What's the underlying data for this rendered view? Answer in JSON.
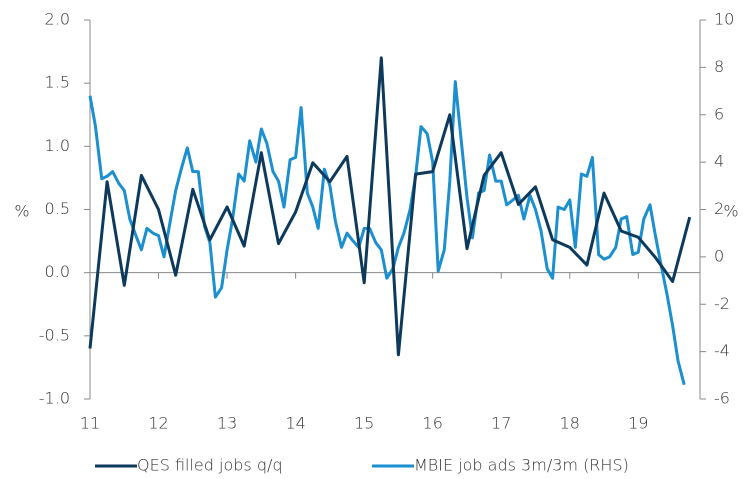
{
  "chart_data": {
    "type": "line",
    "y_label": "%",
    "y2_label": "%",
    "xlim": [
      11,
      19.9
    ],
    "xticks": [
      11,
      12,
      13,
      14,
      15,
      16,
      17,
      18,
      19
    ],
    "ylim": [
      -1,
      2
    ],
    "yticks": [
      {
        "value": 2,
        "label": "2.0"
      },
      {
        "value": 1.5,
        "label": "1.5"
      },
      {
        "value": 1,
        "label": "1.0"
      },
      {
        "value": 0.5,
        "label": "0.5"
      },
      {
        "value": 0,
        "label": "0.0"
      },
      {
        "value": -0.5,
        "label": "-0.5"
      },
      {
        "value": -1,
        "label": "-1.0"
      }
    ],
    "y2lim": [
      -6,
      10
    ],
    "y2ticks": [
      10,
      8,
      6,
      4,
      2,
      0,
      -2,
      -4,
      -6
    ],
    "legend": "bottom",
    "series": [
      {
        "name": "QES filled jobs q/q",
        "color": "#0d3a5c",
        "x": [
          11,
          11.25,
          11.5,
          11.75,
          12,
          12.25,
          12.5,
          12.75,
          13,
          13.25,
          13.5,
          13.75,
          14,
          14.25,
          14.5,
          14.75,
          15,
          15.25,
          15.5,
          15.75,
          16,
          16.25,
          16.5,
          16.75,
          17,
          17.25,
          17.5,
          17.75,
          18,
          18.25,
          18.5,
          18.75,
          19,
          19.25,
          19.5,
          19.75
        ],
        "values": [
          -0.6,
          0.72,
          -0.1,
          0.77,
          0.5,
          -0.02,
          0.66,
          0.26,
          0.52,
          0.21,
          0.95,
          0.23,
          0.48,
          0.87,
          0.72,
          0.92,
          -0.08,
          1.7,
          -0.65,
          0.78,
          0.8,
          1.25,
          0.19,
          0.77,
          0.95,
          0.54,
          0.68,
          0.26,
          0.2,
          0.06,
          0.63,
          0.33,
          0.28,
          0.12,
          -0.07,
          0.44
        ]
      },
      {
        "name": "MBIE job ads 3m/3m (RHS)",
        "color": "#1b8fcf",
        "axis": "y2",
        "x": [
          11,
          11.08,
          11.17,
          11.25,
          11.33,
          11.42,
          11.5,
          11.58,
          11.67,
          11.75,
          11.83,
          11.92,
          12,
          12.08,
          12.17,
          12.25,
          12.33,
          12.42,
          12.5,
          12.58,
          12.67,
          12.75,
          12.83,
          12.92,
          13,
          13.08,
          13.17,
          13.25,
          13.33,
          13.42,
          13.5,
          13.58,
          13.67,
          13.75,
          13.83,
          13.92,
          14,
          14.08,
          14.17,
          14.25,
          14.33,
          14.42,
          14.5,
          14.58,
          14.67,
          14.75,
          14.83,
          14.92,
          15,
          15.08,
          15.17,
          15.25,
          15.33,
          15.42,
          15.5,
          15.58,
          15.67,
          15.75,
          15.83,
          15.92,
          16,
          16.08,
          16.17,
          16.25,
          16.33,
          16.42,
          16.5,
          16.58,
          16.67,
          16.75,
          16.83,
          16.92,
          17,
          17.08,
          17.17,
          17.25,
          17.33,
          17.42,
          17.5,
          17.58,
          17.67,
          17.75,
          17.83,
          17.92,
          18,
          18.08,
          18.17,
          18.25,
          18.33,
          18.42,
          18.5,
          18.58,
          18.67,
          18.75,
          18.83,
          18.92,
          19,
          19.08,
          19.17,
          19.25,
          19.33,
          19.42,
          19.5,
          19.58,
          19.67
        ],
        "values": [
          6.8,
          5.5,
          3.3,
          3.4,
          3.6,
          3.1,
          2.8,
          1.6,
          0.9,
          0.3,
          1.2,
          1.0,
          0.9,
          0.0,
          1.5,
          2.8,
          3.7,
          4.6,
          3.6,
          3.6,
          1.3,
          0.6,
          -1.7,
          -1.3,
          0.3,
          1.6,
          3.5,
          3.2,
          4.9,
          4.0,
          5.4,
          4.8,
          3.6,
          3.2,
          2.1,
          4.1,
          4.2,
          6.3,
          2.7,
          2.1,
          1.2,
          3.7,
          3.0,
          1.5,
          0.4,
          1.0,
          0.7,
          0.4,
          1.2,
          1.2,
          0.6,
          0.3,
          -0.9,
          -0.5,
          0.4,
          1.0,
          2.0,
          3.4,
          5.5,
          5.2,
          4.0,
          -0.6,
          0.3,
          3.2,
          7.4,
          4.8,
          2.5,
          0.8,
          2.7,
          2.8,
          4.3,
          3.2,
          3.2,
          2.2,
          2.4,
          2.6,
          1.6,
          2.6,
          2.0,
          1.1,
          -0.5,
          -0.9,
          2.1,
          2.0,
          2.4,
          0.4,
          3.5,
          3.4,
          4.2,
          0.1,
          -0.1,
          0.0,
          0.4,
          1.6,
          1.7,
          0.1,
          0.2,
          1.6,
          2.2,
          0.9,
          -0.3,
          -1.6,
          -2.9,
          -4.4,
          -5.4
        ]
      }
    ]
  }
}
